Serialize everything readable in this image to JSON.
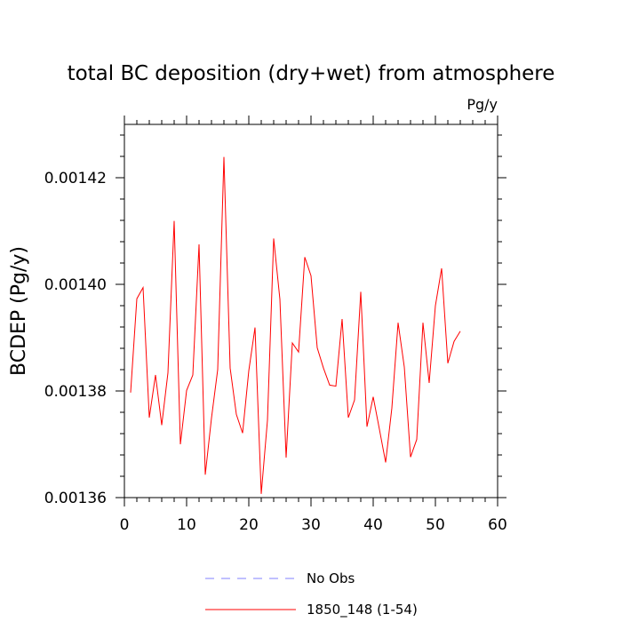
{
  "chart_data": {
    "type": "line",
    "title": "total BC deposition (dry+wet) from atmosphere",
    "units": "Pg/y",
    "ylabel": "BCDEP  (Pg/y)",
    "xlabel": "",
    "xlim": [
      0,
      60
    ],
    "ylim": [
      0.00136,
      0.00143
    ],
    "x_ticks": [
      0,
      10,
      20,
      30,
      40,
      50,
      60
    ],
    "x_tick_labels": [
      "0",
      "10",
      "20",
      "30",
      "40",
      "50",
      "60"
    ],
    "y_ticks": [
      0.00136,
      0.00138,
      0.0014,
      0.00142
    ],
    "y_tick_labels": [
      "0.00136",
      "0.00138",
      "0.00140",
      "0.00142"
    ],
    "x_minor_step": 2,
    "y_minor_step": 4e-06,
    "grid": false,
    "legend_position": "bottom-center",
    "series": [
      {
        "name": "No Obs",
        "color": "#8080ff",
        "dash": "dashed",
        "x": [],
        "values": []
      },
      {
        "name": "1850_148 (1-54)",
        "color": "#ff0000",
        "dash": "solid",
        "x": [
          1,
          2,
          3,
          4,
          5,
          6,
          7,
          8,
          9,
          10,
          11,
          12,
          13,
          14,
          15,
          16,
          17,
          18,
          19,
          20,
          21,
          22,
          23,
          24,
          25,
          26,
          27,
          28,
          29,
          30,
          31,
          32,
          33,
          34,
          35,
          36,
          37,
          38,
          39,
          40,
          41,
          42,
          43,
          44,
          45,
          46,
          47,
          48,
          49,
          50,
          51,
          52,
          53,
          54
        ],
        "values": [
          0.0013797,
          0.0013973,
          0.0013994,
          0.001375,
          0.001383,
          0.0013736,
          0.0013834,
          0.0014119,
          0.00137,
          0.0013801,
          0.001383,
          0.0014075,
          0.0013643,
          0.0013749,
          0.001384,
          0.0014239,
          0.0013843,
          0.0013756,
          0.0013721,
          0.0013838,
          0.0013919,
          0.0013607,
          0.0013745,
          0.0014086,
          0.0013972,
          0.0013675,
          0.001389,
          0.0013873,
          0.0014051,
          0.0014016,
          0.0013881,
          0.0013843,
          0.0013811,
          0.0013809,
          0.0013935,
          0.001375,
          0.0013783,
          0.0013986,
          0.0013733,
          0.0013789,
          0.0013728,
          0.0013666,
          0.0013768,
          0.0013928,
          0.0013845,
          0.0013676,
          0.0013709,
          0.0013928,
          0.0013815,
          0.001396,
          0.001403,
          0.0013852,
          0.0013893,
          0.0013912
        ]
      }
    ]
  }
}
